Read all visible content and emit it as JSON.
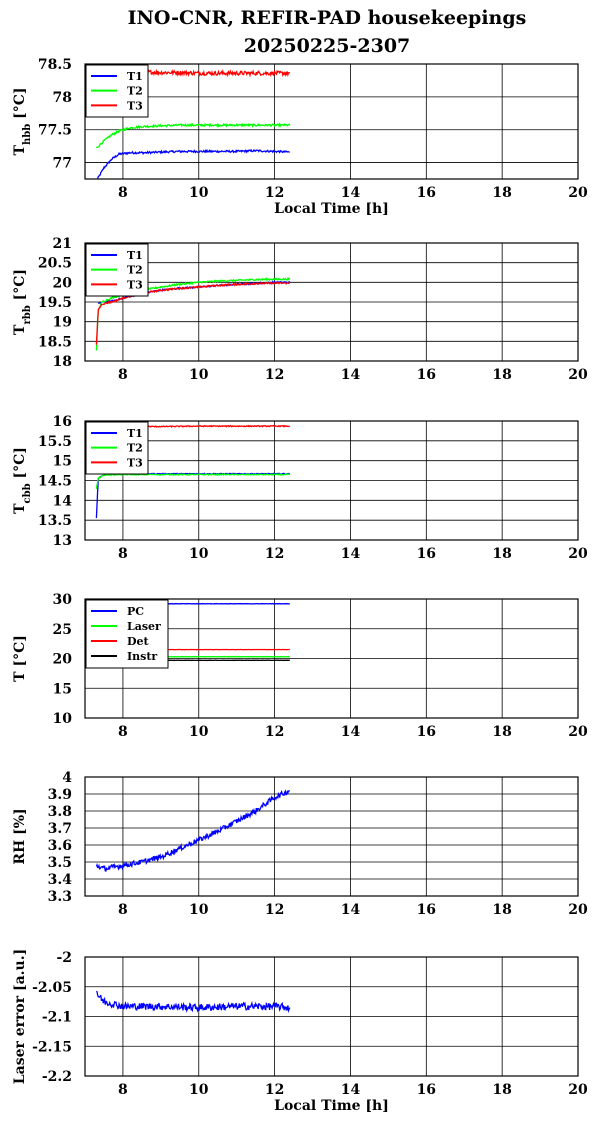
{
  "figure": {
    "title_line1": "INO-CNR, REFIR-PAD housekeepings",
    "title_line2": "20250225-2307"
  },
  "chart_data": [
    {
      "type": "line",
      "ylabel_main": "T",
      "ylabel_sub": "hbb",
      "ylabel_unit": " [°C]",
      "xlabel": "Local Time [h]",
      "xlim": [
        7,
        20
      ],
      "ylim": [
        76.75,
        78.5
      ],
      "xticks": [
        8,
        10,
        12,
        14,
        16,
        18,
        20
      ],
      "yticks": [
        77,
        77.5,
        78,
        78.5
      ],
      "grid": true,
      "legend_position": "top-left",
      "series": [
        {
          "name": "T1",
          "color": "#0000ff",
          "x": [
            7.3,
            7.5,
            7.7,
            7.9,
            8.2,
            8.6,
            9.0,
            9.5,
            10.0,
            10.5,
            11.0,
            11.5,
            12.0,
            12.4
          ],
          "y": [
            76.72,
            76.92,
            77.05,
            77.13,
            77.15,
            77.15,
            77.16,
            77.17,
            77.17,
            77.17,
            77.17,
            77.18,
            77.17,
            77.16
          ],
          "noise": 0.015
        },
        {
          "name": "T2",
          "color": "#00ff00",
          "x": [
            7.3,
            7.5,
            7.7,
            7.9,
            8.2,
            8.6,
            9.0,
            9.5,
            10.0,
            10.5,
            11.0,
            11.5,
            12.0,
            12.4
          ],
          "y": [
            77.22,
            77.33,
            77.42,
            77.48,
            77.53,
            77.55,
            77.56,
            77.57,
            77.57,
            77.57,
            77.57,
            77.57,
            77.57,
            77.57
          ],
          "noise": 0.015
        },
        {
          "name": "T3",
          "color": "#ff0000",
          "x": [
            7.3,
            7.6,
            8.0,
            8.5,
            9.0,
            9.5,
            10.0,
            10.5,
            11.0,
            11.5,
            12.0,
            12.4
          ],
          "y": [
            78.45,
            78.42,
            78.4,
            78.38,
            78.37,
            78.37,
            78.36,
            78.36,
            78.36,
            78.36,
            78.36,
            78.36
          ],
          "noise": 0.03
        }
      ]
    },
    {
      "type": "line",
      "ylabel_main": "T",
      "ylabel_sub": "rbb",
      "ylabel_unit": " [°C]",
      "xlabel": "",
      "xlim": [
        7,
        20
      ],
      "ylim": [
        18,
        21
      ],
      "xticks": [
        8,
        10,
        12,
        14,
        16,
        18,
        20
      ],
      "yticks": [
        18,
        18.5,
        19,
        19.5,
        20,
        20.5,
        21
      ],
      "grid": true,
      "legend_position": "top-left",
      "series": [
        {
          "name": "T1",
          "color": "#0000ff",
          "x": [
            7.35,
            7.45,
            7.7,
            8.0,
            8.5,
            9.0,
            9.5,
            10.0,
            10.5,
            11.0,
            11.5,
            12.0,
            12.4
          ],
          "y": [
            19.45,
            19.5,
            19.52,
            19.6,
            19.72,
            19.8,
            19.85,
            19.88,
            19.92,
            19.95,
            19.97,
            20.0,
            20.0
          ],
          "noise": 0.02
        },
        {
          "name": "T2",
          "color": "#00ff00",
          "x": [
            7.3,
            7.35,
            7.45,
            7.7,
            8.0,
            8.5,
            9.0,
            9.5,
            10.0,
            10.5,
            11.0,
            11.5,
            12.0,
            12.4
          ],
          "y": [
            18.25,
            19.3,
            19.5,
            19.6,
            19.7,
            19.8,
            19.88,
            19.95,
            20.0,
            20.03,
            20.05,
            20.07,
            20.08,
            20.08
          ],
          "noise": 0.02
        },
        {
          "name": "T3",
          "color": "#ff0000",
          "x": [
            7.3,
            7.35,
            7.45,
            7.7,
            8.0,
            8.5,
            9.0,
            9.5,
            10.0,
            10.5,
            11.0,
            11.5,
            12.0,
            12.4
          ],
          "y": [
            18.4,
            19.3,
            19.45,
            19.5,
            19.6,
            19.72,
            19.8,
            19.85,
            19.88,
            19.92,
            19.95,
            19.97,
            19.98,
            19.98
          ],
          "noise": 0.02
        }
      ]
    },
    {
      "type": "line",
      "ylabel_main": "T",
      "ylabel_sub": "cbb",
      "ylabel_unit": " [°C]",
      "xlabel": "",
      "xlim": [
        7,
        20
      ],
      "ylim": [
        13,
        16
      ],
      "xticks": [
        8,
        10,
        12,
        14,
        16,
        18,
        20
      ],
      "yticks": [
        13,
        13.5,
        14,
        14.5,
        15,
        15.5,
        16
      ],
      "grid": true,
      "legend_position": "top-left",
      "series": [
        {
          "name": "T1",
          "color": "#0000ff",
          "x": [
            7.3,
            7.35,
            7.5,
            8.0,
            9.0,
            10.0,
            11.0,
            12.0,
            12.4
          ],
          "y": [
            13.55,
            14.55,
            14.65,
            14.67,
            14.67,
            14.67,
            14.67,
            14.67,
            14.67
          ],
          "noise": 0.01
        },
        {
          "name": "T2",
          "color": "#00ff00",
          "x": [
            7.3,
            7.35,
            7.5,
            8.0,
            9.0,
            10.0,
            11.0,
            12.0,
            12.4
          ],
          "y": [
            14.3,
            14.55,
            14.64,
            14.65,
            14.65,
            14.65,
            14.65,
            14.65,
            14.65
          ],
          "noise": 0.012
        },
        {
          "name": "T3",
          "color": "#ff0000",
          "x": [
            7.3,
            7.5,
            8.0,
            9.0,
            10.0,
            11.0,
            12.0,
            12.4
          ],
          "y": [
            15.85,
            15.86,
            15.86,
            15.86,
            15.87,
            15.87,
            15.87,
            15.87
          ],
          "noise": 0.012
        }
      ]
    },
    {
      "type": "line",
      "ylabel_main": "T [°C]",
      "ylabel_sub": "",
      "ylabel_unit": "",
      "xlabel": "",
      "xlim": [
        7,
        20
      ],
      "ylim": [
        10,
        30
      ],
      "xticks": [
        8,
        10,
        12,
        14,
        16,
        18,
        20
      ],
      "yticks": [
        10,
        15,
        20,
        25,
        30
      ],
      "grid": true,
      "legend_position": "top-left",
      "series": [
        {
          "name": "PC",
          "color": "#0000ff",
          "x": [
            7.3,
            8.0,
            9.0,
            10.0,
            11.0,
            12.0,
            12.4
          ],
          "y": [
            29.2,
            29.2,
            29.2,
            29.2,
            29.2,
            29.2,
            29.2
          ],
          "noise": 0.03
        },
        {
          "name": "Laser",
          "color": "#00ff00",
          "x": [
            7.3,
            8.0,
            9.0,
            10.0,
            11.0,
            12.0,
            12.4
          ],
          "y": [
            20.3,
            20.3,
            20.3,
            20.3,
            20.3,
            20.3,
            20.3
          ],
          "noise": 0.02
        },
        {
          "name": "Det",
          "color": "#ff0000",
          "x": [
            7.3,
            8.0,
            9.0,
            10.0,
            11.0,
            12.0,
            12.4
          ],
          "y": [
            21.5,
            21.5,
            21.5,
            21.5,
            21.5,
            21.5,
            21.5
          ],
          "noise": 0.02
        },
        {
          "name": "Instr",
          "color": "#000000",
          "x": [
            7.3,
            8.0,
            9.0,
            10.0,
            11.0,
            12.0,
            12.4
          ],
          "y": [
            19.7,
            19.7,
            19.7,
            19.7,
            19.7,
            19.7,
            19.7
          ],
          "noise": 0.02
        }
      ]
    },
    {
      "type": "line",
      "ylabel_main": "RH [%]",
      "ylabel_sub": "",
      "ylabel_unit": "",
      "xlabel": "",
      "xlim": [
        7,
        20
      ],
      "ylim": [
        3.3,
        4
      ],
      "xticks": [
        8,
        10,
        12,
        14,
        16,
        18,
        20
      ],
      "yticks": [
        3.3,
        3.4,
        3.5,
        3.6,
        3.7,
        3.8,
        3.9,
        4
      ],
      "grid": true,
      "legend_position": "none",
      "series": [
        {
          "name": "",
          "color": "#0000ff",
          "x": [
            7.3,
            7.5,
            8.0,
            8.5,
            9.0,
            9.5,
            10.0,
            10.5,
            11.0,
            11.5,
            12.0,
            12.4
          ],
          "y": [
            3.48,
            3.46,
            3.48,
            3.5,
            3.53,
            3.58,
            3.63,
            3.68,
            3.74,
            3.8,
            3.88,
            3.92
          ],
          "noise": 0.015
        }
      ]
    },
    {
      "type": "line",
      "ylabel_main": "Laser error [a.u.]",
      "ylabel_sub": "",
      "ylabel_unit": "",
      "xlabel": "Local Time [h]",
      "xlim": [
        7,
        20
      ],
      "ylim": [
        -2.2,
        -2
      ],
      "xticks": [
        8,
        10,
        12,
        14,
        16,
        18,
        20
      ],
      "yticks": [
        -2.2,
        -2.15,
        -2.1,
        -2.05,
        -2
      ],
      "grid": true,
      "legend_position": "none",
      "series": [
        {
          "name": "",
          "color": "#0000ff",
          "x": [
            7.3,
            7.35,
            7.5,
            8.0,
            9.0,
            10.0,
            11.0,
            12.0,
            12.4
          ],
          "y": [
            -2.055,
            -2.065,
            -2.075,
            -2.083,
            -2.083,
            -2.085,
            -2.083,
            -2.083,
            -2.085
          ],
          "noise": 0.006
        }
      ]
    }
  ]
}
